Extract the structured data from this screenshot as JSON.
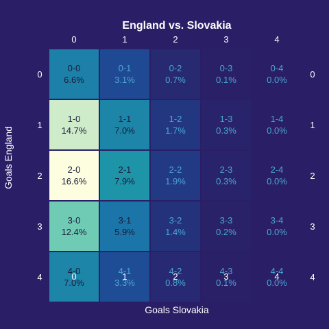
{
  "chart_data": {
    "type": "heatmap",
    "title": "England vs. Slovakia",
    "xlabel": "Goals Slovakia",
    "ylabel": "Goals England",
    "x_categories": [
      "0",
      "1",
      "2",
      "3",
      "4"
    ],
    "y_categories": [
      "0",
      "1",
      "2",
      "3",
      "4"
    ],
    "cells": [
      [
        {
          "label": "0-0",
          "pct": "6.6%",
          "value": 6.6
        },
        {
          "label": "0-1",
          "pct": "3.1%",
          "value": 3.1
        },
        {
          "label": "0-2",
          "pct": "0.7%",
          "value": 0.7
        },
        {
          "label": "0-3",
          "pct": "0.1%",
          "value": 0.1
        },
        {
          "label": "0-4",
          "pct": "0.0%",
          "value": 0.0
        }
      ],
      [
        {
          "label": "1-0",
          "pct": "14.7%",
          "value": 14.7
        },
        {
          "label": "1-1",
          "pct": "7.0%",
          "value": 7.0
        },
        {
          "label": "1-2",
          "pct": "1.7%",
          "value": 1.7
        },
        {
          "label": "1-3",
          "pct": "0.3%",
          "value": 0.3
        },
        {
          "label": "1-4",
          "pct": "0.0%",
          "value": 0.0
        }
      ],
      [
        {
          "label": "2-0",
          "pct": "16.6%",
          "value": 16.6
        },
        {
          "label": "2-1",
          "pct": "7.9%",
          "value": 7.9
        },
        {
          "label": "2-2",
          "pct": "1.9%",
          "value": 1.9
        },
        {
          "label": "2-3",
          "pct": "0.3%",
          "value": 0.3
        },
        {
          "label": "2-4",
          "pct": "0.0%",
          "value": 0.0
        }
      ],
      [
        {
          "label": "3-0",
          "pct": "12.4%",
          "value": 12.4
        },
        {
          "label": "3-1",
          "pct": "5.9%",
          "value": 5.9
        },
        {
          "label": "3-2",
          "pct": "1.4%",
          "value": 1.4
        },
        {
          "label": "3-3",
          "pct": "0.2%",
          "value": 0.2
        },
        {
          "label": "3-4",
          "pct": "0.0%",
          "value": 0.0
        }
      ],
      [
        {
          "label": "4-0",
          "pct": "7.0%",
          "value": 7.0
        },
        {
          "label": "4-1",
          "pct": "3.3%",
          "value": 3.3
        },
        {
          "label": "4-2",
          "pct": "0.8%",
          "value": 0.8
        },
        {
          "label": "4-3",
          "pct": "0.1%",
          "value": 0.1
        },
        {
          "label": "4-4",
          "pct": "0.0%",
          "value": 0.0
        }
      ]
    ],
    "background_color": "#2a1f66",
    "colorscale": [
      "#2a1f66",
      "#1f4590",
      "#1b6fa8",
      "#1e9aa8",
      "#2bb4a8",
      "#b8e4c0",
      "#fdfee0"
    ]
  }
}
